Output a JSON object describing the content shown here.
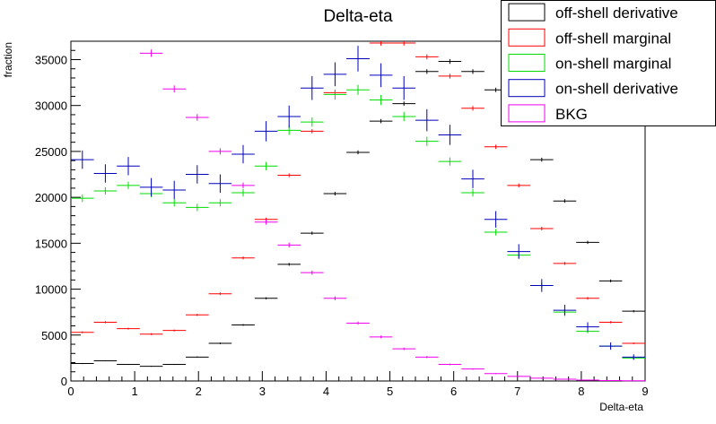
{
  "chart_data": {
    "type": "scatter",
    "title": "Delta-eta",
    "xlabel": "Delta-eta",
    "ylabel": "fraction",
    "xlim": [
      0,
      9
    ],
    "ylim": [
      0,
      37000
    ],
    "x_ticks": [
      0,
      1,
      2,
      3,
      4,
      5,
      6,
      7,
      8,
      9
    ],
    "y_ticks": [
      0,
      5000,
      10000,
      15000,
      20000,
      25000,
      30000,
      35000
    ],
    "x_tick_labels": [
      "0",
      "1",
      "2",
      "3",
      "4",
      "5",
      "6",
      "7",
      "8",
      "9"
    ],
    "y_tick_labels": [
      "0",
      "5000",
      "10000",
      "15000",
      "20000",
      "25000",
      "30000",
      "35000"
    ],
    "grid": false,
    "legend_position": "top-right",
    "bin_centers": [
      0.18,
      0.54,
      0.9,
      1.26,
      1.62,
      1.98,
      2.34,
      2.7,
      3.06,
      3.42,
      3.78,
      4.14,
      4.5,
      4.86,
      5.22,
      5.58,
      5.94,
      6.3,
      6.66,
      7.02,
      7.38,
      7.74,
      8.1,
      8.46,
      8.82
    ],
    "series": [
      {
        "name": "off-shell derivative",
        "color": "#000000",
        "values": [
          1900,
          2200,
          1800,
          1600,
          1800,
          2600,
          4100,
          6100,
          9000,
          12700,
          16100,
          20400,
          24900,
          28300,
          30200,
          33700,
          34800,
          33700,
          31700,
          28300,
          24100,
          19600,
          15100,
          10900,
          7600
        ],
        "errors": [
          60,
          60,
          60,
          50,
          60,
          70,
          90,
          100,
          120,
          150,
          170,
          190,
          210,
          230,
          240,
          250,
          260,
          250,
          240,
          230,
          220,
          190,
          170,
          150,
          120
        ]
      },
      {
        "name": "off-shell marginal",
        "color": "#ff0000",
        "values": [
          5300,
          6400,
          5700,
          5100,
          5500,
          7200,
          9500,
          13400,
          17600,
          22400,
          27200,
          31400,
          35100,
          36800,
          36800,
          35300,
          33200,
          29700,
          25500,
          21300,
          16600,
          12800,
          9000,
          6400,
          4100
        ],
        "errors": [
          100,
          110,
          100,
          100,
          100,
          120,
          140,
          160,
          190,
          210,
          230,
          250,
          270,
          280,
          280,
          270,
          260,
          250,
          230,
          210,
          190,
          160,
          140,
          120,
          90
        ]
      },
      {
        "name": "on-shell marginal",
        "color": "#00dd00",
        "values": [
          19900,
          20700,
          21300,
          20400,
          19400,
          18900,
          19400,
          20500,
          23400,
          27300,
          28200,
          31200,
          31700,
          30600,
          28800,
          26100,
          23900,
          20500,
          16200,
          13700,
          10400,
          7500,
          5400,
          3800,
          2500
        ],
        "errors": [
          400,
          400,
          400,
          400,
          400,
          400,
          400,
          400,
          450,
          500,
          500,
          550,
          550,
          550,
          500,
          500,
          450,
          400,
          350,
          350,
          300,
          250,
          200,
          150,
          150
        ]
      },
      {
        "name": "on-shell derivative",
        "color": "#0000bb",
        "values": [
          24100,
          22600,
          23400,
          21100,
          20800,
          22500,
          21500,
          24700,
          27200,
          28800,
          31900,
          33400,
          35100,
          33300,
          31900,
          28400,
          26800,
          22000,
          17600,
          14100,
          10400,
          7700,
          5900,
          3800,
          2600
        ],
        "errors": [
          1000,
          1000,
          1000,
          1000,
          1000,
          1000,
          1000,
          1000,
          1100,
          1200,
          1300,
          1300,
          1400,
          1300,
          1300,
          1200,
          1100,
          1000,
          900,
          800,
          700,
          600,
          500,
          400,
          300
        ]
      },
      {
        "name": "BKG",
        "color": "#ee00ee",
        "values": [
          null,
          null,
          null,
          35700,
          31800,
          28700,
          25000,
          21300,
          17300,
          14800,
          11800,
          9000,
          6300,
          4800,
          3500,
          2600,
          1800,
          1300,
          800,
          500,
          300,
          200,
          100,
          50,
          30
        ],
        "errors": [
          0,
          0,
          0,
          400,
          380,
          360,
          340,
          310,
          280,
          260,
          230,
          200,
          170,
          150,
          130,
          110,
          90,
          80,
          60,
          50,
          40,
          30,
          25,
          20,
          15
        ]
      }
    ]
  }
}
